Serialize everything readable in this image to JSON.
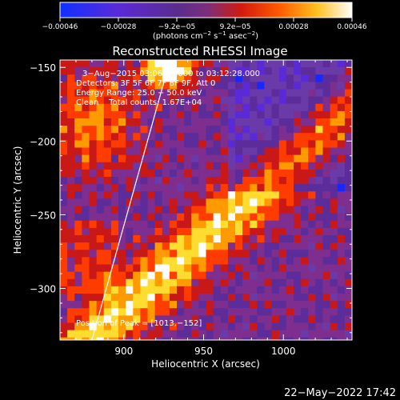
{
  "colorbar": {
    "ticks": [
      "−0.00046",
      "−0.00028",
      "−9.2e−05",
      "9.2e−05",
      "0.00028",
      "0.00046"
    ],
    "units_main": "(photons cm",
    "units_sup1": "−2",
    "units_mid": " s",
    "units_sup2": "−1",
    "units_end": " asec",
    "units_sup3": "−2",
    "units_close": ")"
  },
  "chart_data": {
    "type": "heatmap",
    "title": "Reconstructed RHESSI Image",
    "xlabel": "Heliocentric X (arcsec)",
    "ylabel": "Heliocentric Y (arcsec)",
    "xlim": [
      860,
      1043
    ],
    "ylim": [
      -335,
      -145
    ],
    "x_ticks": [
      900,
      950,
      1000
    ],
    "y_ticks": [
      -150,
      -200,
      -250,
      -300
    ],
    "x_tick_labels": [
      "900",
      "950",
      "1000"
    ],
    "y_tick_labels": [
      "−150",
      "−200",
      "−250",
      "−300"
    ],
    "color_range": [
      -0.00046,
      0.00046
    ],
    "colormap": [
      "#1428ff",
      "#5a2ad8",
      "#6a3aa8",
      "#5c2c9a",
      "#7e2e8e",
      "#c81818",
      "#ff3c00",
      "#ff9a00",
      "#ffdc30",
      "#ffffff"
    ],
    "annotations": [
      "3−Aug−2015 03:06:28.000 to 03:12:28.000",
      "Detectors: 3F 5F 6F 7F 8F 9F, Att 0",
      "Energy Range: 25.0 − 50.0 keV",
      "Clean    Total counts: 1.67E+04"
    ],
    "peak_label": "Position of Peak = [1013,−152]",
    "peak_position": [
      1013,
      -152
    ],
    "limb_line": [
      [
        880,
        -335
      ],
      [
        929,
        -145
      ]
    ]
  },
  "footer": {
    "timestamp": "22−May−2022 17:42"
  }
}
